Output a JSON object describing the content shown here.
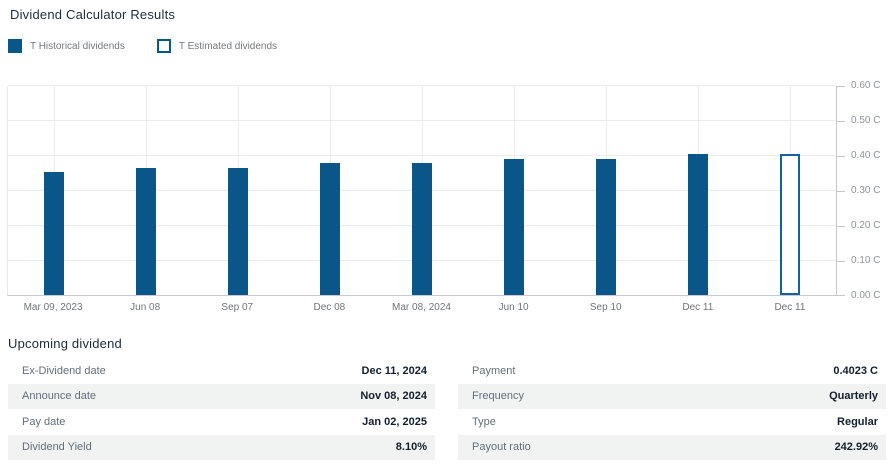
{
  "page": {
    "title": "Dividend Calculator Results"
  },
  "legend": {
    "items": [
      {
        "label": "T Historical dividends",
        "style": "filled"
      },
      {
        "label": "T Estimated dividends",
        "style": "outlined"
      }
    ]
  },
  "colors": {
    "historical_bar": "#0a5689",
    "estimated_outline": "#1062a0",
    "gridline": "#ebecee",
    "axis": "#c2c6c9"
  },
  "chart_data": {
    "type": "bar",
    "title": "",
    "xlabel": "",
    "ylabel": "",
    "categories": [
      "Mar 09, 2023",
      "Jun 08",
      "Sep 07",
      "Dec 08",
      "Mar 08, 2024",
      "Jun 10",
      "Sep 10",
      "Dec 11",
      "Dec 11"
    ],
    "series": [
      {
        "name": "T Historical dividends",
        "style": "filled",
        "values": [
          0.3511,
          0.3636,
          0.3636,
          0.3761,
          0.3761,
          0.3891,
          0.3891,
          0.4023,
          null
        ]
      },
      {
        "name": "T Estimated dividends",
        "style": "outlined",
        "values": [
          null,
          null,
          null,
          null,
          null,
          null,
          null,
          null,
          0.4023
        ]
      }
    ],
    "ylim": [
      0,
      0.6
    ],
    "y_ticks": [
      "0.00 C",
      "0.10 C",
      "0.20 C",
      "0.30 C",
      "0.40 C",
      "0.50 C",
      "0.60 C"
    ],
    "grid": true,
    "legend_position": "top-left",
    "y_axis_side": "right"
  },
  "upcoming": {
    "heading": "Upcoming dividend",
    "columns": [
      {
        "rows": [
          {
            "label": "Ex-Dividend date",
            "value": "Dec 11, 2024"
          },
          {
            "label": "Announce date",
            "value": "Nov 08, 2024"
          },
          {
            "label": "Pay date",
            "value": "Jan 02, 2025"
          },
          {
            "label": "Dividend Yield",
            "value": "8.10%"
          }
        ]
      },
      {
        "rows": [
          {
            "label": "Payment",
            "value": "0.4023 C"
          },
          {
            "label": "Frequency",
            "value": "Quarterly"
          },
          {
            "label": "Type",
            "value": "Regular"
          },
          {
            "label": "Payout ratio",
            "value": "242.92%"
          }
        ]
      }
    ]
  }
}
